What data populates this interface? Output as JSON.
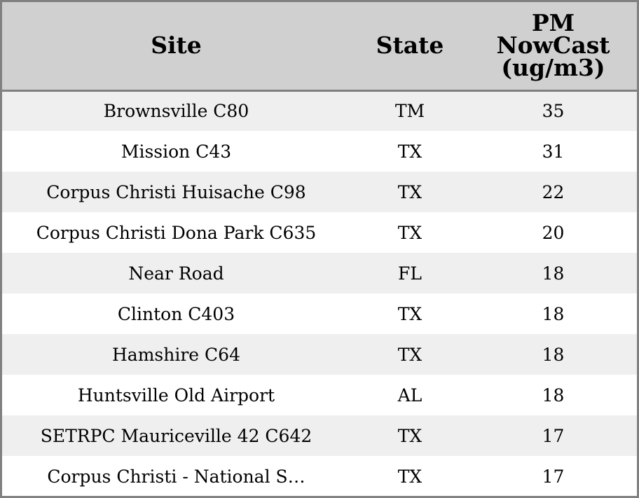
{
  "table": {
    "headers": {
      "site": "Site",
      "state": "State",
      "pm_line1": "PM",
      "pm_line2": "NowCast",
      "pm_line3": "(ug/m3)"
    },
    "rows": [
      {
        "site": "Brownsville C80",
        "state": "TM",
        "pm": "35"
      },
      {
        "site": "Mission C43",
        "state": "TX",
        "pm": "31"
      },
      {
        "site": "Corpus Christi Huisache C98",
        "state": "TX",
        "pm": "22"
      },
      {
        "site": "Corpus Christi Dona Park C635",
        "state": "TX",
        "pm": "20"
      },
      {
        "site": "Near Road",
        "state": "FL",
        "pm": "18"
      },
      {
        "site": "Clinton C403",
        "state": "TX",
        "pm": "18"
      },
      {
        "site": "Hamshire C64",
        "state": "TX",
        "pm": "18"
      },
      {
        "site": "Huntsville Old Airport",
        "state": "AL",
        "pm": "18"
      },
      {
        "site": "SETRPC Mauriceville 42 C642",
        "state": "TX",
        "pm": "17"
      },
      {
        "site": "Corpus Christi - National S…",
        "state": "TX",
        "pm": "17"
      }
    ]
  },
  "colors": {
    "header_bg": "#d0d0d0",
    "row_alt_bg": "#efefef",
    "row_bg": "#ffffff",
    "border": "#808080"
  }
}
